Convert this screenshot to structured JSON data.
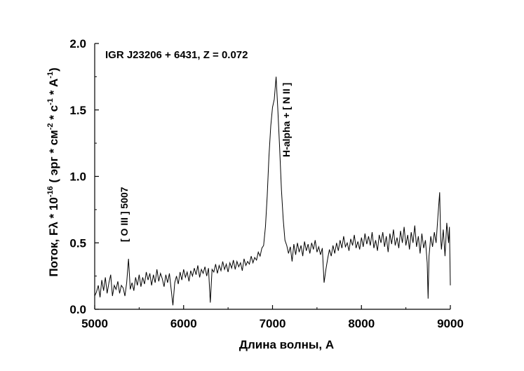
{
  "chart_data": {
    "type": "line",
    "title": "IGR J23206 + 6431,  Z = 0.072",
    "xlabel": "Длина волны, А",
    "ylabel": {
      "prefix": "Поток,   Fλ * 10",
      "exp1": "-16",
      "mid1": " ( эрг * см",
      "exp2": "-2",
      "mid2": " * с",
      "exp3": "-1",
      "mid3": " * А",
      "exp4": "-1",
      "suffix": ")"
    },
    "xlim": [
      5000,
      9000
    ],
    "ylim": [
      0.0,
      2.0
    ],
    "xticks": [
      5000,
      6000,
      7000,
      8000,
      9000
    ],
    "xtick_labels": [
      "5000",
      "6000",
      "7000",
      "8000",
      "9000"
    ],
    "yticks": [
      0.0,
      0.5,
      1.0,
      1.5,
      2.0
    ],
    "ytick_labels": [
      "0.0",
      "0.5",
      "1.0",
      "1.5",
      "2.0"
    ],
    "grid": false,
    "annotations": [
      {
        "text": "[ O III ] 5007",
        "x": 5370
      },
      {
        "text": "H-alpha + [ N II ]",
        "x": 7240
      }
    ],
    "series": [
      {
        "color": "#000000",
        "points": [
          [
            5000,
            0.1
          ],
          [
            5020,
            0.13
          ],
          [
            5040,
            0.18
          ],
          [
            5060,
            0.09
          ],
          [
            5080,
            0.22
          ],
          [
            5100,
            0.14
          ],
          [
            5120,
            0.24
          ],
          [
            5140,
            0.12
          ],
          [
            5160,
            0.2
          ],
          [
            5180,
            0.26
          ],
          [
            5200,
            0.1
          ],
          [
            5220,
            0.18
          ],
          [
            5240,
            0.15
          ],
          [
            5260,
            0.21
          ],
          [
            5280,
            0.12
          ],
          [
            5300,
            0.18
          ],
          [
            5320,
            0.16
          ],
          [
            5340,
            0.1
          ],
          [
            5360,
            0.2
          ],
          [
            5380,
            0.38
          ],
          [
            5400,
            0.15
          ],
          [
            5420,
            0.2
          ],
          [
            5440,
            0.14
          ],
          [
            5460,
            0.24
          ],
          [
            5480,
            0.18
          ],
          [
            5500,
            0.26
          ],
          [
            5520,
            0.17
          ],
          [
            5540,
            0.24
          ],
          [
            5560,
            0.19
          ],
          [
            5580,
            0.28
          ],
          [
            5600,
            0.22
          ],
          [
            5620,
            0.27
          ],
          [
            5640,
            0.18
          ],
          [
            5660,
            0.26
          ],
          [
            5680,
            0.2
          ],
          [
            5700,
            0.3
          ],
          [
            5720,
            0.21
          ],
          [
            5740,
            0.27
          ],
          [
            5760,
            0.23
          ],
          [
            5780,
            0.17
          ],
          [
            5800,
            0.26
          ],
          [
            5820,
            0.2
          ],
          [
            5840,
            0.27
          ],
          [
            5860,
            0.15
          ],
          [
            5880,
            0.03
          ],
          [
            5900,
            0.2
          ],
          [
            5920,
            0.25
          ],
          [
            5940,
            0.19
          ],
          [
            5960,
            0.28
          ],
          [
            5980,
            0.22
          ],
          [
            6000,
            0.3
          ],
          [
            6020,
            0.24
          ],
          [
            6040,
            0.28
          ],
          [
            6060,
            0.21
          ],
          [
            6080,
            0.29
          ],
          [
            6100,
            0.25
          ],
          [
            6120,
            0.31
          ],
          [
            6140,
            0.26
          ],
          [
            6160,
            0.33
          ],
          [
            6180,
            0.24
          ],
          [
            6200,
            0.3
          ],
          [
            6220,
            0.27
          ],
          [
            6240,
            0.32
          ],
          [
            6260,
            0.25
          ],
          [
            6280,
            0.31
          ],
          [
            6300,
            0.05
          ],
          [
            6320,
            0.3
          ],
          [
            6340,
            0.28
          ],
          [
            6360,
            0.34
          ],
          [
            6380,
            0.27
          ],
          [
            6400,
            0.33
          ],
          [
            6420,
            0.29
          ],
          [
            6440,
            0.36
          ],
          [
            6460,
            0.3
          ],
          [
            6480,
            0.34
          ],
          [
            6500,
            0.28
          ],
          [
            6520,
            0.35
          ],
          [
            6540,
            0.31
          ],
          [
            6560,
            0.37
          ],
          [
            6580,
            0.3
          ],
          [
            6600,
            0.36
          ],
          [
            6620,
            0.32
          ],
          [
            6640,
            0.35
          ],
          [
            6660,
            0.29
          ],
          [
            6680,
            0.38
          ],
          [
            6700,
            0.33
          ],
          [
            6720,
            0.36
          ],
          [
            6740,
            0.34
          ],
          [
            6760,
            0.4
          ],
          [
            6780,
            0.35
          ],
          [
            6800,
            0.39
          ],
          [
            6820,
            0.37
          ],
          [
            6840,
            0.43
          ],
          [
            6860,
            0.4
          ],
          [
            6880,
            0.46
          ],
          [
            6900,
            0.48
          ],
          [
            6920,
            0.62
          ],
          [
            6940,
            0.85
          ],
          [
            6960,
            1.15
          ],
          [
            6980,
            1.38
          ],
          [
            7000,
            1.52
          ],
          [
            7020,
            1.58
          ],
          [
            7040,
            1.75
          ],
          [
            7060,
            1.5
          ],
          [
            7080,
            1.22
          ],
          [
            7100,
            0.9
          ],
          [
            7120,
            0.68
          ],
          [
            7140,
            0.52
          ],
          [
            7160,
            0.48
          ],
          [
            7180,
            0.42
          ],
          [
            7200,
            0.47
          ],
          [
            7220,
            0.36
          ],
          [
            7240,
            0.49
          ],
          [
            7260,
            0.41
          ],
          [
            7280,
            0.5
          ],
          [
            7300,
            0.43
          ],
          [
            7320,
            0.48
          ],
          [
            7340,
            0.4
          ],
          [
            7360,
            0.51
          ],
          [
            7380,
            0.44
          ],
          [
            7400,
            0.49
          ],
          [
            7420,
            0.42
          ],
          [
            7440,
            0.5
          ],
          [
            7460,
            0.45
          ],
          [
            7480,
            0.52
          ],
          [
            7500,
            0.43
          ],
          [
            7520,
            0.47
          ],
          [
            7540,
            0.41
          ],
          [
            7560,
            0.46
          ],
          [
            7580,
            0.2
          ],
          [
            7600,
            0.3
          ],
          [
            7620,
            0.38
          ],
          [
            7640,
            0.45
          ],
          [
            7660,
            0.4
          ],
          [
            7680,
            0.48
          ],
          [
            7700,
            0.42
          ],
          [
            7720,
            0.5
          ],
          [
            7740,
            0.44
          ],
          [
            7760,
            0.52
          ],
          [
            7780,
            0.46
          ],
          [
            7800,
            0.55
          ],
          [
            7820,
            0.47
          ],
          [
            7840,
            0.5
          ],
          [
            7860,
            0.44
          ],
          [
            7880,
            0.53
          ],
          [
            7900,
            0.48
          ],
          [
            7920,
            0.56
          ],
          [
            7940,
            0.46
          ],
          [
            7960,
            0.51
          ],
          [
            7980,
            0.45
          ],
          [
            8000,
            0.54
          ],
          [
            8020,
            0.47
          ],
          [
            8040,
            0.57
          ],
          [
            8060,
            0.49
          ],
          [
            8080,
            0.55
          ],
          [
            8100,
            0.48
          ],
          [
            8120,
            0.58
          ],
          [
            8140,
            0.46
          ],
          [
            8160,
            0.52
          ],
          [
            8180,
            0.44
          ],
          [
            8200,
            0.56
          ],
          [
            8220,
            0.5
          ],
          [
            8240,
            0.58
          ],
          [
            8260,
            0.47
          ],
          [
            8280,
            0.55
          ],
          [
            8300,
            0.43
          ],
          [
            8320,
            0.57
          ],
          [
            8340,
            0.49
          ],
          [
            8360,
            0.6
          ],
          [
            8380,
            0.48
          ],
          [
            8400,
            0.54
          ],
          [
            8420,
            0.46
          ],
          [
            8440,
            0.59
          ],
          [
            8460,
            0.5
          ],
          [
            8480,
            0.62
          ],
          [
            8500,
            0.48
          ],
          [
            8520,
            0.56
          ],
          [
            8540,
            0.45
          ],
          [
            8560,
            0.58
          ],
          [
            8580,
            0.5
          ],
          [
            8600,
            0.63
          ],
          [
            8620,
            0.47
          ],
          [
            8640,
            0.55
          ],
          [
            8660,
            0.42
          ],
          [
            8680,
            0.57
          ],
          [
            8700,
            0.46
          ],
          [
            8720,
            0.52
          ],
          [
            8740,
            0.35
          ],
          [
            8750,
            0.08
          ],
          [
            8760,
            0.4
          ],
          [
            8780,
            0.55
          ],
          [
            8800,
            0.47
          ],
          [
            8820,
            0.58
          ],
          [
            8840,
            0.5
          ],
          [
            8860,
            0.7
          ],
          [
            8880,
            0.88
          ],
          [
            8890,
            0.55
          ],
          [
            8900,
            0.45
          ],
          [
            8920,
            0.6
          ],
          [
            8940,
            0.4
          ],
          [
            8960,
            0.65
          ],
          [
            8980,
            0.5
          ],
          [
            8990,
            0.62
          ],
          [
            9000,
            0.18
          ]
        ]
      }
    ]
  }
}
